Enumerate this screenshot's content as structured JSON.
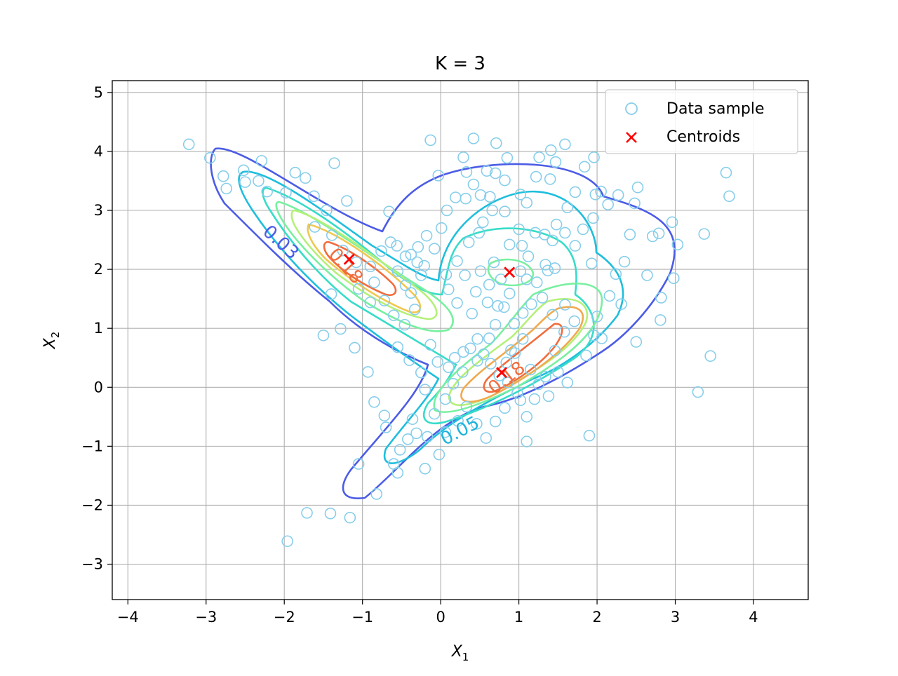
{
  "chart_data": {
    "type": "scatter",
    "title": "K = 3",
    "xlabel": {
      "base": "X",
      "sub": "1"
    },
    "ylabel": {
      "base": "X",
      "sub": "2"
    },
    "xlim": [
      -4.2,
      4.7
    ],
    "ylim": [
      -3.6,
      5.2
    ],
    "xticks": [
      -4,
      -3,
      -2,
      -1,
      0,
      1,
      2,
      3,
      4
    ],
    "xtick_labels": [
      "−4",
      "−3",
      "−2",
      "−1",
      "0",
      "1",
      "2",
      "3",
      "4"
    ],
    "yticks": [
      -3,
      -2,
      -1,
      0,
      1,
      2,
      3,
      4,
      5
    ],
    "ytick_labels": [
      "−3",
      "−2",
      "−1",
      "0",
      "1",
      "2",
      "3",
      "4",
      "5"
    ],
    "grid": true,
    "legend": {
      "placement": "upper right",
      "entries": [
        {
          "label": "Data sample",
          "marker": "open-circle",
          "color": "#87ceeb"
        },
        {
          "label": "Centroids",
          "marker": "x",
          "color": "#ff0000"
        }
      ]
    },
    "series": [
      {
        "name": "Data sample",
        "marker": "open-circle",
        "color": "#87ceeb",
        "points": [
          [
            -3.22,
            4.12
          ],
          [
            -2.95,
            3.89
          ],
          [
            -2.78,
            3.58
          ],
          [
            -2.74,
            3.37
          ],
          [
            -2.5,
            3.48
          ],
          [
            -2.52,
            3.68
          ],
          [
            -2.29,
            3.84
          ],
          [
            -2.22,
            3.32
          ],
          [
            -1.86,
            3.64
          ],
          [
            -1.73,
            3.55
          ],
          [
            -1.46,
            3.0
          ],
          [
            -1.36,
            3.8
          ],
          [
            -1.2,
            3.16
          ],
          [
            -1.61,
            2.72
          ],
          [
            -1.39,
            2.58
          ],
          [
            -1.25,
            2.32
          ],
          [
            -1.08,
            2.12
          ],
          [
            -0.9,
            2.05
          ],
          [
            -0.76,
            2.31
          ],
          [
            -0.64,
            2.46
          ],
          [
            -0.66,
            2.98
          ],
          [
            -0.55,
            1.97
          ],
          [
            -0.45,
            1.73
          ],
          [
            -0.38,
            1.6
          ],
          [
            -0.3,
            2.12
          ],
          [
            -0.25,
            1.9
          ],
          [
            -0.9,
            1.44
          ],
          [
            -1.05,
            1.67
          ],
          [
            -1.4,
            1.58
          ],
          [
            -1.5,
            0.88
          ],
          [
            -1.28,
            0.99
          ],
          [
            -1.1,
            0.67
          ],
          [
            -0.93,
            0.26
          ],
          [
            -0.85,
            -0.25
          ],
          [
            -0.7,
            -0.68
          ],
          [
            -0.55,
            0.68
          ],
          [
            -0.4,
            0.46
          ],
          [
            -0.25,
            0.25
          ],
          [
            -0.13,
            0.72
          ],
          [
            -0.04,
            0.43
          ],
          [
            -0.2,
            -0.04
          ],
          [
            -0.36,
            -0.54
          ],
          [
            -0.31,
            -0.78
          ],
          [
            -0.52,
            -1.06
          ],
          [
            -0.6,
            -1.3
          ],
          [
            -0.55,
            -1.45
          ],
          [
            -0.2,
            -1.38
          ],
          [
            -0.02,
            -1.14
          ],
          [
            0.06,
            -0.76
          ],
          [
            0.22,
            -0.57
          ],
          [
            0.1,
            0.34
          ],
          [
            0.18,
            0.5
          ],
          [
            0.29,
            0.6
          ],
          [
            0.38,
            0.66
          ],
          [
            0.47,
            0.82
          ],
          [
            0.55,
            0.56
          ],
          [
            0.64,
            0.4
          ],
          [
            0.75,
            0.2
          ],
          [
            0.86,
            0.08
          ],
          [
            0.98,
            -0.1
          ],
          [
            1.02,
            -0.22
          ],
          [
            1.1,
            -0.5
          ],
          [
            1.2,
            -0.2
          ],
          [
            1.34,
            0.18
          ],
          [
            1.46,
            0.62
          ],
          [
            1.58,
            0.94
          ],
          [
            1.71,
            1.12
          ],
          [
            1.86,
            0.54
          ],
          [
            1.96,
            0.88
          ],
          [
            2.0,
            1.2
          ],
          [
            1.05,
            0.82
          ],
          [
            0.9,
            0.63
          ],
          [
            0.7,
            1.06
          ],
          [
            0.81,
            1.36
          ],
          [
            0.6,
            1.44
          ],
          [
            0.45,
            1.62
          ],
          [
            0.31,
            1.9
          ],
          [
            0.21,
            2.14
          ],
          [
            0.36,
            2.46
          ],
          [
            0.49,
            2.62
          ],
          [
            0.54,
            2.8
          ],
          [
            0.66,
            3.0
          ],
          [
            0.51,
            3.26
          ],
          [
            0.42,
            3.44
          ],
          [
            0.33,
            3.65
          ],
          [
            0.29,
            3.9
          ],
          [
            0.42,
            4.22
          ],
          [
            0.71,
            4.14
          ],
          [
            0.85,
            3.89
          ],
          [
            0.82,
            3.51
          ],
          [
            0.7,
            3.63
          ],
          [
            0.59,
            3.67
          ],
          [
            -0.13,
            4.19
          ],
          [
            -0.03,
            3.59
          ],
          [
            0.08,
            3.0
          ],
          [
            0.01,
            2.7
          ],
          [
            -0.18,
            2.57
          ],
          [
            -0.29,
            2.38
          ],
          [
            -0.38,
            2.25
          ],
          [
            0.88,
            2.42
          ],
          [
            1.0,
            2.68
          ],
          [
            1.12,
            2.22
          ],
          [
            1.21,
            2.62
          ],
          [
            1.33,
            2.59
          ],
          [
            1.43,
            2.49
          ],
          [
            1.59,
            2.62
          ],
          [
            1.72,
            2.4
          ],
          [
            1.82,
            2.68
          ],
          [
            1.95,
            2.87
          ],
          [
            1.84,
            3.74
          ],
          [
            1.96,
            3.9
          ],
          [
            1.98,
            3.27
          ],
          [
            2.05,
            3.32
          ],
          [
            2.14,
            3.1
          ],
          [
            2.27,
            3.26
          ],
          [
            2.48,
            3.12
          ],
          [
            2.52,
            3.39
          ],
          [
            2.42,
            2.59
          ],
          [
            2.71,
            2.56
          ],
          [
            2.79,
            2.61
          ],
          [
            2.96,
            2.8
          ],
          [
            3.03,
            2.42
          ],
          [
            2.64,
            1.9
          ],
          [
            2.98,
            1.85
          ],
          [
            2.82,
            1.52
          ],
          [
            2.81,
            1.14
          ],
          [
            2.5,
            0.77
          ],
          [
            2.06,
            0.83
          ],
          [
            2.31,
            1.41
          ],
          [
            3.37,
            2.6
          ],
          [
            3.65,
            3.64
          ],
          [
            3.69,
            3.24
          ],
          [
            3.45,
            0.53
          ],
          [
            3.29,
            -0.08
          ],
          [
            1.9,
            -0.82
          ],
          [
            1.1,
            -0.92
          ],
          [
            1.02,
            3.27
          ],
          [
            1.1,
            3.13
          ],
          [
            1.22,
            3.57
          ],
          [
            1.4,
            3.53
          ],
          [
            1.47,
            3.82
          ],
          [
            1.59,
            4.12
          ],
          [
            1.41,
            4.02
          ],
          [
            1.26,
            3.9
          ],
          [
            1.48,
            2.76
          ],
          [
            1.62,
            3.05
          ],
          [
            1.72,
            3.31
          ],
          [
            1.59,
            1.4
          ],
          [
            1.43,
            1.23
          ],
          [
            1.3,
            1.52
          ],
          [
            1.16,
            1.41
          ],
          [
            1.05,
            1.26
          ],
          [
            0.94,
            1.08
          ],
          [
            0.62,
            0.83
          ],
          [
            0.47,
            0.45
          ],
          [
            0.28,
            0.26
          ],
          [
            0.16,
            0.06
          ],
          [
            0.06,
            -0.2
          ],
          [
            -0.08,
            -0.45
          ],
          [
            -0.17,
            -0.84
          ],
          [
            -0.42,
            -0.88
          ],
          [
            -0.72,
            -0.48
          ],
          [
            -0.33,
            1.32
          ],
          [
            -0.46,
            1.06
          ],
          [
            -0.6,
            1.22
          ],
          [
            -0.72,
            1.47
          ],
          [
            -0.85,
            1.78
          ],
          [
            0.68,
            2.12
          ],
          [
            0.51,
            1.97
          ],
          [
            0.62,
            1.74
          ],
          [
            0.77,
            1.83
          ],
          [
            1.02,
            1.97
          ],
          [
            1.1,
            1.83
          ],
          [
            1.23,
            1.78
          ],
          [
            1.37,
            1.98
          ],
          [
            1.46,
            2.02
          ],
          [
            1.34,
            2.08
          ],
          [
            -0.82,
            -1.81
          ],
          [
            -1.05,
            -1.3
          ],
          [
            -1.41,
            -2.14
          ],
          [
            -1.71,
            -2.13
          ],
          [
            -1.96,
            -2.61
          ],
          [
            -1.16,
            -2.21
          ],
          [
            -1.98,
            3.3
          ],
          [
            -2.33,
            3.5
          ],
          [
            -1.62,
            3.24
          ],
          [
            0.4,
            1.25
          ],
          [
            0.21,
            1.43
          ],
          [
            0.1,
            1.66
          ],
          [
            0.07,
            1.91
          ],
          [
            1.93,
            2.1
          ],
          [
            2.16,
            1.55
          ],
          [
            2.24,
            1.92
          ],
          [
            2.35,
            2.13
          ],
          [
            0.88,
            1.59
          ],
          [
            0.73,
            1.38
          ],
          [
            1.15,
            0.3
          ],
          [
            1.25,
            0.05
          ],
          [
            1.38,
            -0.15
          ],
          [
            1.62,
            0.08
          ],
          [
            1.5,
            0.26
          ],
          [
            0.84,
            0.42
          ],
          [
            0.95,
            0.58
          ],
          [
            0.33,
            -0.33
          ],
          [
            0.46,
            -0.62
          ],
          [
            0.58,
            -0.86
          ],
          [
            0.7,
            -0.58
          ],
          [
            0.82,
            -0.35
          ],
          [
            -0.08,
            2.35
          ],
          [
            -0.21,
            2.06
          ],
          [
            -0.45,
            2.22
          ],
          [
            -0.56,
            2.4
          ],
          [
            1.04,
            2.4
          ],
          [
            0.32,
            3.2
          ],
          [
            0.19,
            3.22
          ],
          [
            0.63,
            3.23
          ],
          [
            0.82,
            2.98
          ]
        ]
      },
      {
        "name": "Centroids",
        "marker": "x",
        "color": "#ff0000",
        "points": [
          [
            -1.17,
            2.17
          ],
          [
            0.88,
            1.95
          ],
          [
            0.78,
            0.25
          ]
        ]
      }
    ],
    "contour_labels": [
      {
        "text": "0.03",
        "x": -2.05,
        "y": 2.45,
        "rotation": 42,
        "color": "#4c5ce6"
      },
      {
        "text": "0.05",
        "x": 0.25,
        "y": -0.75,
        "rotation": -28,
        "color": "#1eb4dc"
      },
      {
        "text": "0.18",
        "x": -1.22,
        "y": 2.05,
        "rotation": 48,
        "color": "#f26c3c"
      },
      {
        "text": "0.18",
        "x": 0.85,
        "y": 0.15,
        "rotation": -38,
        "color": "#f26c3c"
      }
    ]
  }
}
